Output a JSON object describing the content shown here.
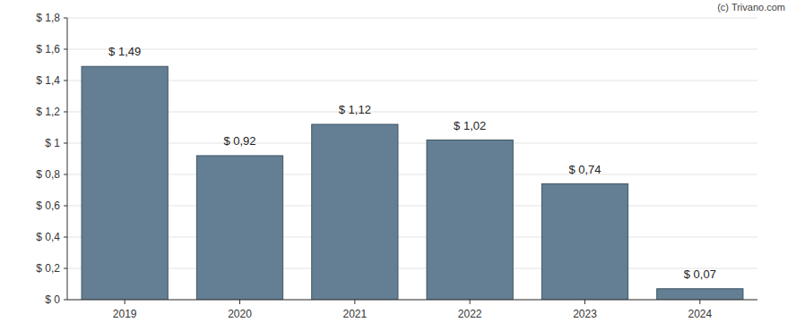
{
  "chart_data": {
    "type": "bar",
    "annotations": [
      "(c) Trivano.com"
    ],
    "categories": [
      "2019",
      "2020",
      "2021",
      "2022",
      "2023",
      "2024"
    ],
    "values": [
      1.49,
      0.92,
      1.12,
      1.02,
      0.74,
      0.07
    ],
    "value_labels": [
      "$ 1,49",
      "$ 0,92",
      "$ 1,12",
      "$ 1,02",
      "$ 0,74",
      "$ 0,07"
    ],
    "data_labels": true,
    "color": "#647f93",
    "ylim": [
      0,
      1.8
    ],
    "yticks": [
      {
        "value": 0,
        "label": "$ 0"
      },
      {
        "value": 0.2,
        "label": "$ 0,2"
      },
      {
        "value": 0.4,
        "label": "$ 0,4"
      },
      {
        "value": 0.6,
        "label": "$ 0,6"
      },
      {
        "value": 0.8,
        "label": "$ 0,8"
      },
      {
        "value": 1,
        "label": "$ 1"
      },
      {
        "value": 1.2,
        "label": "$ 1,2"
      },
      {
        "value": 1.4,
        "label": "$ 1,4"
      },
      {
        "value": 1.6,
        "label": "$ 1,6"
      },
      {
        "value": 1.8,
        "label": "$ 1,8"
      }
    ],
    "grid": true
  }
}
